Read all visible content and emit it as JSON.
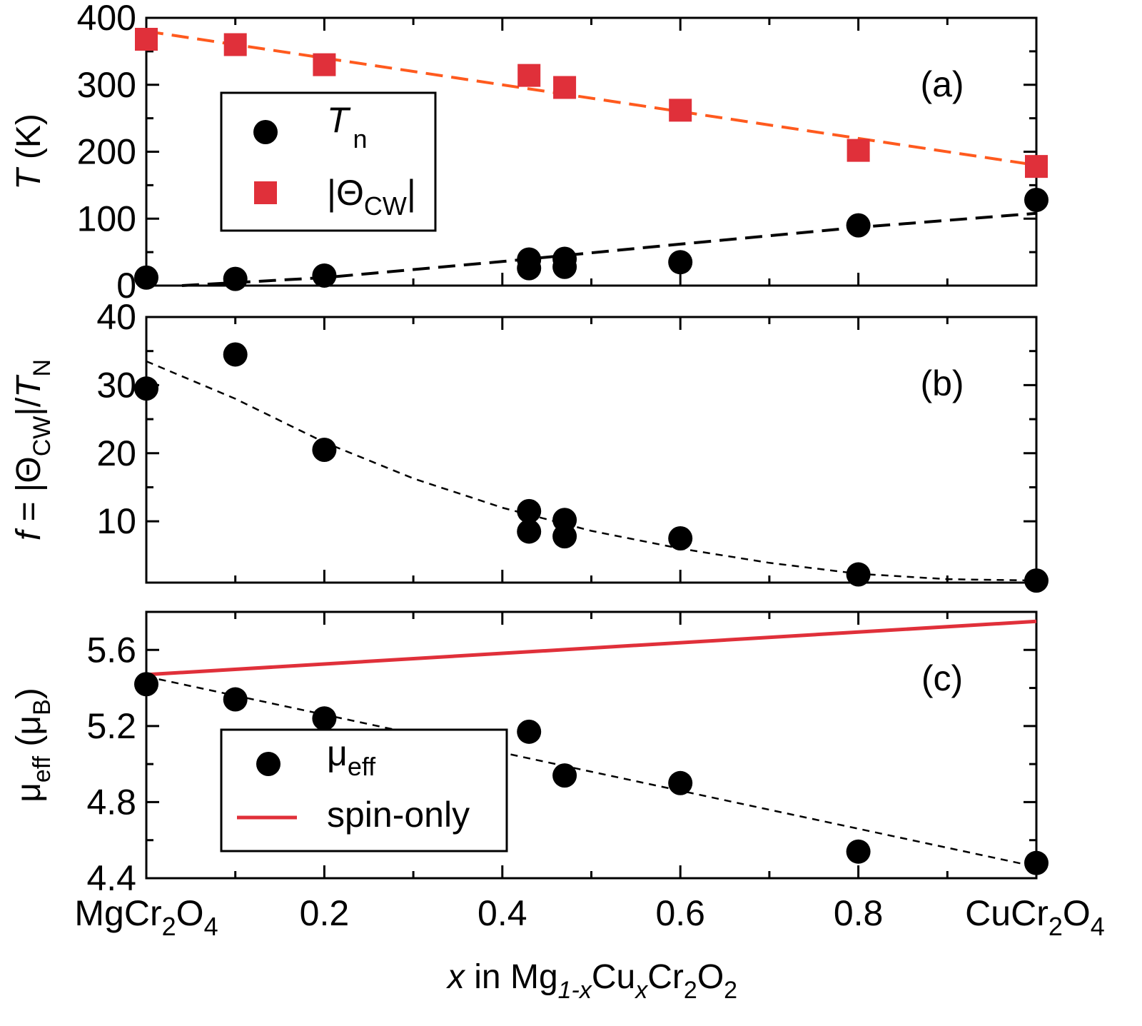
{
  "chart_data": [
    {
      "type": "scatter",
      "panel_tag": "(a)",
      "xlim": [
        0,
        1
      ],
      "ylim": [
        0,
        400
      ],
      "yticks": [
        0,
        100,
        200,
        300,
        400
      ],
      "ylabel": {
        "italic": "T",
        "rest": " (K)"
      },
      "legend": {
        "placement": "center-left",
        "entries": [
          {
            "marker": "circle",
            "label": "T",
            "sub": "n",
            "italic": true
          },
          {
            "marker": "square",
            "label": "|Θ",
            "sub": "CW",
            "after": "|",
            "italic": false
          }
        ]
      },
      "series": [
        {
          "name": "Tn",
          "marker": "circle",
          "color": "#000000",
          "points": [
            [
              0,
              12
            ],
            [
              0.1,
              10
            ],
            [
              0.2,
              15
            ],
            [
              0.43,
              26
            ],
            [
              0.43,
              39
            ],
            [
              0.47,
              28
            ],
            [
              0.47,
              40
            ],
            [
              0.6,
              35
            ],
            [
              0.8,
              90
            ],
            [
              1.0,
              128
            ]
          ]
        },
        {
          "name": "|ΘCW|",
          "marker": "square",
          "color": "#e0303a",
          "points": [
            [
              0,
              368
            ],
            [
              0.1,
              360
            ],
            [
              0.2,
              330
            ],
            [
              0.43,
              314
            ],
            [
              0.47,
              296
            ],
            [
              0.6,
              262
            ],
            [
              0.8,
              202
            ],
            [
              1.0,
              178
            ]
          ]
        }
      ],
      "fits": [
        {
          "color": "#000000",
          "dash": "long",
          "points": [
            [
              0.04,
              0
            ],
            [
              0.2,
              12
            ],
            [
              0.4,
              36
            ],
            [
              0.6,
              62
            ],
            [
              0.8,
              87
            ],
            [
              1.0,
              108
            ]
          ]
        },
        {
          "color": "#ff5a1e",
          "dash": "long",
          "points": [
            [
              0,
              380
            ],
            [
              1.0,
              180
            ]
          ]
        }
      ]
    },
    {
      "type": "scatter",
      "panel_tag": "(b)",
      "xlim": [
        0,
        1
      ],
      "ylim": [
        1,
        40
      ],
      "yticks": [
        10,
        20,
        30,
        40
      ],
      "ylabel": {
        "italic": "f",
        "rest": " = |Θ",
        "sub": "CW",
        "rest2": "|/",
        "italic2": "T",
        "sub2": "N"
      },
      "series": [
        {
          "name": "f",
          "marker": "circle",
          "color": "#000000",
          "points": [
            [
              0,
              29.5
            ],
            [
              0.1,
              34.5
            ],
            [
              0.2,
              20.5
            ],
            [
              0.43,
              11.5
            ],
            [
              0.43,
              8.5
            ],
            [
              0.47,
              10.2
            ],
            [
              0.47,
              7.8
            ],
            [
              0.6,
              7.5
            ],
            [
              0.8,
              2.2
            ],
            [
              1.0,
              1.3
            ]
          ]
        }
      ],
      "fits": [
        {
          "color": "#000000",
          "dash": "short",
          "points": [
            [
              0,
              33.5
            ],
            [
              0.1,
              28.0
            ],
            [
              0.2,
              21.6
            ],
            [
              0.3,
              16.3
            ],
            [
              0.4,
              12.0
            ],
            [
              0.5,
              8.6
            ],
            [
              0.6,
              6.0
            ],
            [
              0.7,
              3.9
            ],
            [
              0.8,
              2.3
            ],
            [
              0.9,
              1.5
            ],
            [
              1.0,
              1.3
            ]
          ]
        }
      ]
    },
    {
      "type": "scatter",
      "panel_tag": "(c)",
      "xlim": [
        0,
        1
      ],
      "ylim": [
        4.4,
        5.8
      ],
      "yticks": [
        4.4,
        4.8,
        5.2,
        5.6
      ],
      "ylabel": {
        "mu": "μ",
        "sub": "eff",
        "rest": " (μ",
        "sub2": "B",
        "rest2": ")"
      },
      "legend": {
        "placement": "bottom-left",
        "entries": [
          {
            "marker": "circle",
            "label": "μ",
            "sub": "eff"
          },
          {
            "marker": "line",
            "label": "spin-only"
          }
        ]
      },
      "series": [
        {
          "name": "μeff",
          "marker": "circle",
          "color": "#000000",
          "points": [
            [
              0,
              5.42
            ],
            [
              0.1,
              5.34
            ],
            [
              0.2,
              5.24
            ],
            [
              0.43,
              5.17
            ],
            [
              0.47,
              4.94
            ],
            [
              0.6,
              4.9
            ],
            [
              0.8,
              4.54
            ],
            [
              1.0,
              4.48
            ]
          ]
        }
      ],
      "fits": [
        {
          "color": "#000000",
          "dash": "short",
          "points": [
            [
              0,
              5.46
            ],
            [
              1.0,
              4.46
            ]
          ]
        },
        {
          "color": "#e0303a",
          "dash": "solid",
          "points": [
            [
              0,
              5.47
            ],
            [
              1.0,
              5.75
            ]
          ]
        }
      ]
    }
  ],
  "x_axis": {
    "ticks": [
      {
        "v": 0,
        "main": "MgCr",
        "sub1": "2",
        "mid": "O",
        "sub2": "4"
      },
      {
        "v": 0.2,
        "main": "0.2"
      },
      {
        "v": 0.4,
        "main": "0.4"
      },
      {
        "v": 0.6,
        "main": "0.6"
      },
      {
        "v": 0.8,
        "main": "0.8"
      },
      {
        "v": 1.0,
        "main": "CuCr",
        "sub1": "2",
        "mid": "O",
        "sub2": "4"
      }
    ],
    "label": {
      "italic": "x",
      "rest": " in Mg",
      "sub1": "1-x",
      "mid": "Cu",
      "sub2": "x",
      "mid2": "Cr",
      "sub3": "2",
      "mid3": "O",
      "sub4": "2"
    }
  }
}
